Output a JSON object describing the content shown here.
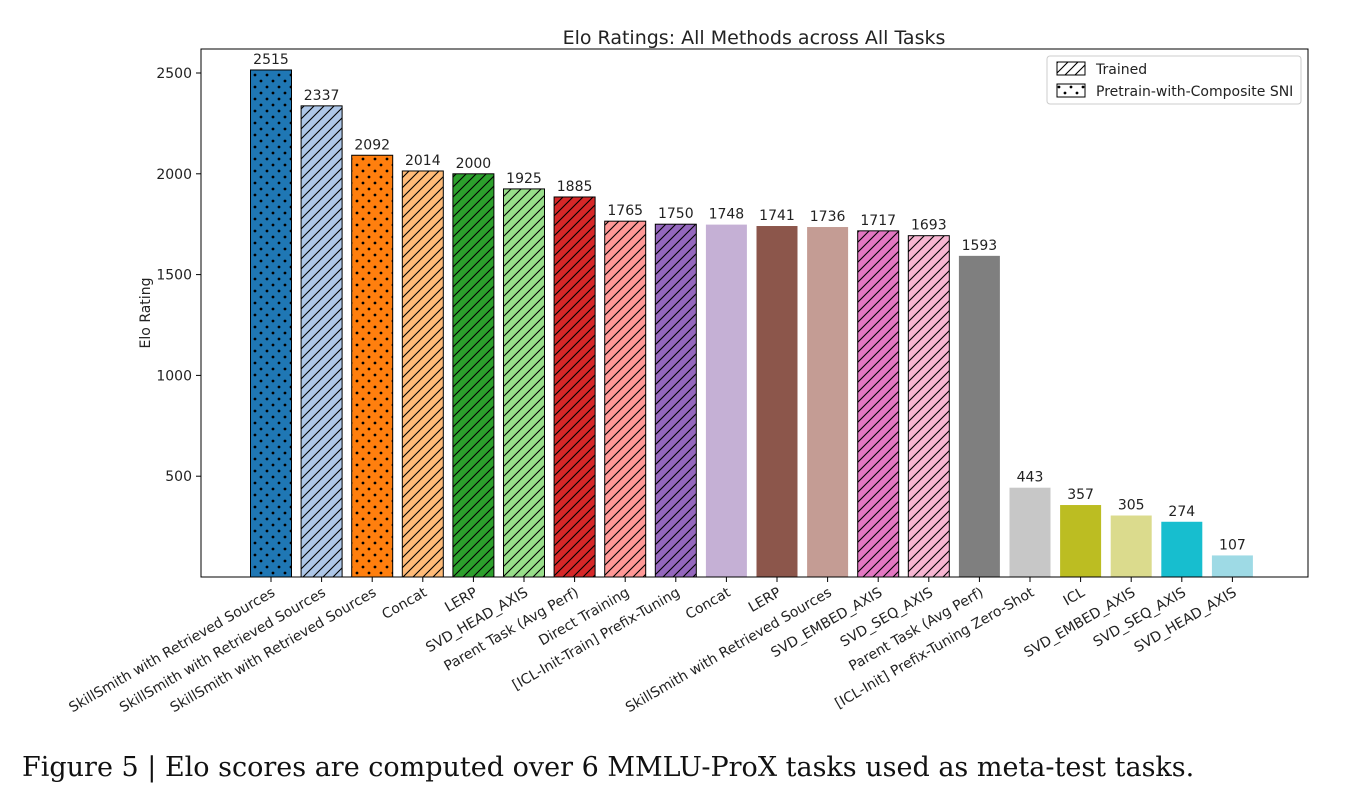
{
  "chart_data": {
    "type": "bar",
    "title": "Elo Ratings: All Methods across All Tasks",
    "xlabel": "",
    "ylabel": "Elo Rating",
    "ylim": [
      0,
      2600
    ],
    "yticks": [
      500,
      1000,
      1500,
      2000,
      2500
    ],
    "grid": false,
    "legend_position": "top-right",
    "legend": [
      {
        "label": "Trained",
        "pattern": "hatch"
      },
      {
        "label": "Pretrain-with-Composite SNI",
        "pattern": "dots"
      }
    ],
    "categories": [
      "SkillSmith with Retrieved Sources",
      "SkillSmith with Retrieved Sources",
      "SkillSmith with Retrieved Sources",
      "Concat",
      "LERP",
      "SVD_HEAD_AXIS",
      "Parent Task (Avg Perf)",
      "Direct Training",
      "[ICL-Init-Train] Prefix-Tuning",
      "Concat",
      "LERP",
      "SkillSmith with Retrieved Sources",
      "SVD_EMBED_AXIS",
      "SVD_SEQ_AXIS",
      "Parent Task (Avg Perf)",
      "[ICL-Init] Prefix-Tuning Zero-Shot",
      "ICL",
      "SVD_EMBED_AXIS",
      "SVD_SEQ_AXIS",
      "SVD_HEAD_AXIS"
    ],
    "values": [
      2515,
      2337,
      2092,
      2014,
      2000,
      1925,
      1885,
      1765,
      1750,
      1748,
      1741,
      1736,
      1717,
      1693,
      1593,
      443,
      357,
      305,
      274,
      107
    ],
    "data_labels": [
      "2515",
      "2337",
      "2092",
      "2014",
      "2000",
      "1925",
      "1885",
      "1765",
      "1750",
      "1748",
      "1741",
      "1736",
      "1717",
      "1693",
      "1593",
      "443",
      "357",
      "305",
      "274",
      "107"
    ],
    "colors": [
      "#1f77b4",
      "#aec7e8",
      "#ff7f0e",
      "#ffbb78",
      "#2ca02c",
      "#98df8a",
      "#d62728",
      "#ff9896",
      "#9467bd",
      "#c5b0d5",
      "#8c564b",
      "#c49c94",
      "#e377c2",
      "#f7b6d2",
      "#7f7f7f",
      "#c7c7c7",
      "#bcbd22",
      "#dbdb8d",
      "#17becf",
      "#9edae5"
    ],
    "patterns": [
      "dots",
      "hatch",
      "dots",
      "hatch",
      "hatch",
      "hatch",
      "hatch",
      "hatch",
      "hatch",
      "none",
      "none",
      "none",
      "hatch",
      "hatch",
      "none",
      "none",
      "none",
      "none",
      "none",
      "none"
    ]
  },
  "caption": "Figure 5 | Elo scores are computed over 6 MMLU-ProX tasks used as meta-test tasks."
}
